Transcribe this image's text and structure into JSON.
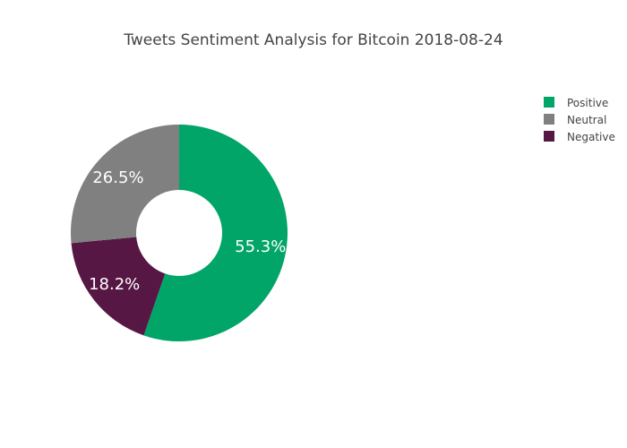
{
  "chart_data": {
    "type": "pie",
    "title": "Tweets Sentiment Analysis for Bitcoin 2018-08-24",
    "hole": true,
    "labels": [
      "Positive",
      "Neutral",
      "Negative"
    ],
    "values": [
      55.3,
      26.5,
      18.2
    ],
    "display_order": [
      "Positive",
      "Negative",
      "Neutral"
    ],
    "colors": {
      "Positive": "#00a567",
      "Neutral": "#808080",
      "Negative": "#571745"
    },
    "value_labels": {
      "Positive": "55.3%",
      "Neutral": "26.5%",
      "Negative": "18.2%"
    },
    "legend_position": "top-right"
  }
}
